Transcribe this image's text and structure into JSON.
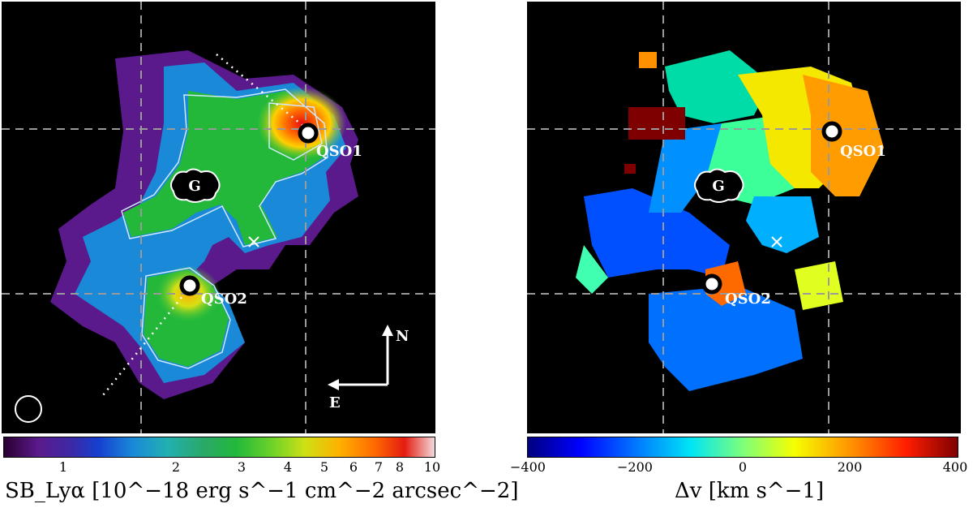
{
  "left_panel": {
    "labels": {
      "qso1": "QSO1",
      "qso2": "QSO2",
      "galaxy": "G",
      "north": "N",
      "east": "E"
    }
  },
  "right_panel": {
    "labels": {
      "qso1": "QSO1",
      "qso2": "QSO2",
      "galaxy": "G"
    }
  },
  "colorbar_left": {
    "ticks": [
      "1",
      "2",
      "3",
      "4",
      "5",
      "6",
      "7",
      "8",
      "10"
    ],
    "title": "SB_Lyα [10^−18 erg s^−1 cm^−2 arcsec^−2]"
  },
  "colorbar_right": {
    "ticks": [
      "−400",
      "−200",
      "0",
      "200",
      "400"
    ],
    "title": "Δv [km s^−1]"
  }
}
